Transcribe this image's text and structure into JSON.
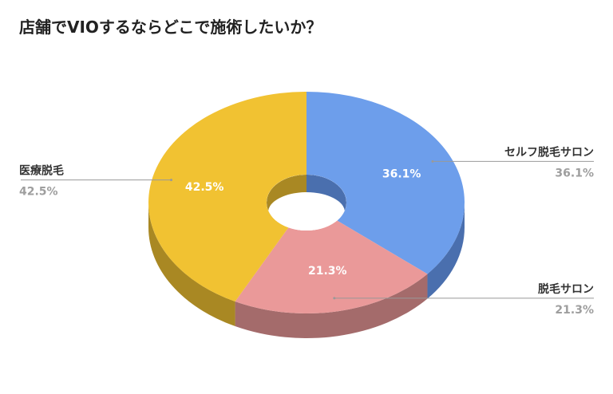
{
  "title": "店舗でVIOするならどこで施術したいか？",
  "chart_data": {
    "type": "pie",
    "variant": "donut-3d",
    "title": "店舗でVIOするならどこで施術したいか？",
    "slices": [
      {
        "label": "セルフ脱毛サロン",
        "value": 36.1,
        "display": "36.1%",
        "color": "#6d9eeb",
        "side": "#4a6fae"
      },
      {
        "label": "脱毛サロン",
        "value": 21.3,
        "display": "21.3%",
        "color": "#ea9999",
        "side": "#a46b6b"
      },
      {
        "label": "医療脱毛",
        "value": 42.5,
        "display": "42.5%",
        "color": "#f1c232",
        "side": "#a98823"
      }
    ],
    "legend": "callouts"
  }
}
